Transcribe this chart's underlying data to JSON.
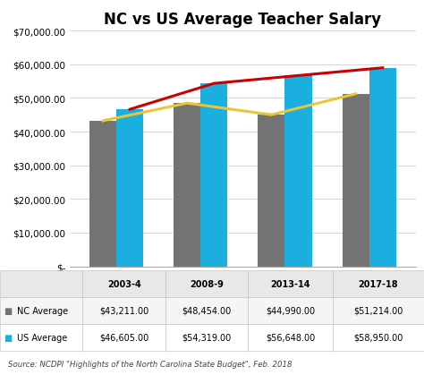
{
  "title": "NC vs US Average Teacher Salary",
  "categories": [
    "2003-4",
    "2008-9",
    "2013-14",
    "2017-18"
  ],
  "nc_values": [
    43211,
    48454,
    44990,
    51214
  ],
  "us_values": [
    46605,
    54319,
    56648,
    58950
  ],
  "nc_color": "#737373",
  "us_color": "#1AAFDF",
  "nc_line_color": "#E8C53A",
  "us_line_color": "#CC0000",
  "ylim": [
    0,
    70000
  ],
  "yticks": [
    0,
    10000,
    20000,
    30000,
    40000,
    50000,
    60000,
    70000
  ],
  "ytick_labels": [
    "$-",
    "$10,000.00",
    "$20,000.00",
    "$30,000.00",
    "$40,000.00",
    "$50,000.00",
    "$60,000.00",
    "$70,000.00"
  ],
  "source_text": "Source: NCDPI \"Highlights of the North Carolina State Budget\", Feb. 2018",
  "legend_nc": "NC Average",
  "legend_us": "US Average",
  "table_nc_values": [
    "$43,211.00",
    "$48,454.00",
    "$44,990.00",
    "$51,214.00"
  ],
  "table_us_values": [
    "$46,605.00",
    "$54,319.00",
    "$56,648.00",
    "$58,950.00"
  ],
  "background_color": "#FFFFFF",
  "bar_width": 0.32
}
